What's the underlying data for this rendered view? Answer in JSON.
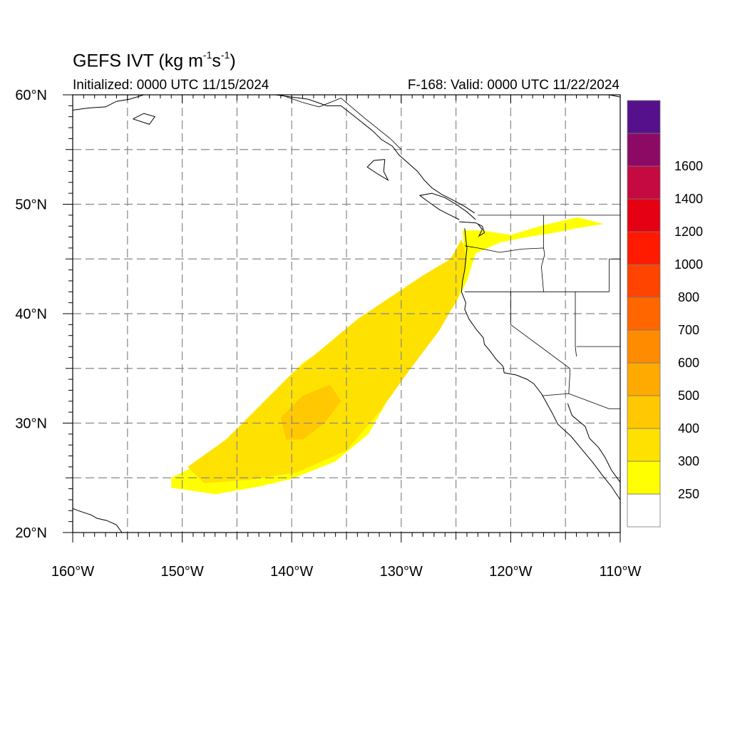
{
  "title": {
    "text": "GEFS IVT (kg m",
    "sup1": "-1",
    "mid": "s",
    "sup2": "-1",
    "close": ")"
  },
  "subtitle_left": "Initialized: 0000 UTC 11/15/2024",
  "subtitle_right": "F-168: Valid: 0000 UTC 11/22/2024",
  "colors": {
    "ivt_250": "#ffff00",
    "ivt_300": "#ffe100",
    "ivt_400": "#ffc800",
    "ivt_500": "#ffaa00",
    "coast": "#000000",
    "grid": "#888888"
  },
  "chart_data": {
    "type": "heatmap",
    "projection": "cylindrical-equidistant",
    "lon_range": [
      -160,
      -110
    ],
    "lat_range": [
      20,
      60
    ],
    "grid_dashed": true,
    "x_ticks": [
      {
        "value": -160,
        "label": "160°W"
      },
      {
        "value": -150,
        "label": "150°W"
      },
      {
        "value": -140,
        "label": "140°W"
      },
      {
        "value": -130,
        "label": "130°W"
      },
      {
        "value": -120,
        "label": "120°W"
      },
      {
        "value": -110,
        "label": "110°W"
      }
    ],
    "y_ticks": [
      {
        "value": 60,
        "label": "60°N"
      },
      {
        "value": 50,
        "label": "50°N"
      },
      {
        "value": 40,
        "label": "40°N"
      },
      {
        "value": 30,
        "label": "30°N"
      },
      {
        "value": 20,
        "label": "20°N"
      }
    ],
    "colorbar": {
      "placement": "right",
      "levels": [
        {
          "label": "250",
          "color": "#ffff00"
        },
        {
          "label": "300",
          "color": "#ffe100"
        },
        {
          "label": "400",
          "color": "#ffc800"
        },
        {
          "label": "500",
          "color": "#ffaa00"
        },
        {
          "label": "600",
          "color": "#ff8c00"
        },
        {
          "label": "700",
          "color": "#ff6600"
        },
        {
          "label": "800",
          "color": "#ff4400"
        },
        {
          "label": "1000",
          "color": "#ff1a00"
        },
        {
          "label": "1200",
          "color": "#e60014"
        },
        {
          "label": "1400",
          "color": "#c40a40"
        },
        {
          "label": "1600",
          "color": "#8c0a64"
        }
      ],
      "below_color": "#ffffff",
      "top_color": "#55118c"
    },
    "ivt_plume_250": [
      [
        -151,
        25.0
      ],
      [
        -147,
        27.0
      ],
      [
        -145,
        29.0
      ],
      [
        -143,
        31.5
      ],
      [
        -141,
        33.5
      ],
      [
        -139,
        35.5
      ],
      [
        -136,
        37.5
      ],
      [
        -133,
        39.5
      ],
      [
        -130,
        41.0
      ],
      [
        -128,
        43.0
      ],
      [
        -126,
        44.5
      ],
      [
        -124.3,
        46.5
      ],
      [
        -124.4,
        47.6
      ],
      [
        -122.6,
        47.6
      ],
      [
        -120,
        47.2
      ],
      [
        -117,
        48.1
      ],
      [
        -113.9,
        48.8
      ],
      [
        -111.5,
        48.2
      ],
      [
        -114,
        47.8
      ],
      [
        -116,
        47.4
      ],
      [
        -118.5,
        47.0
      ],
      [
        -121,
        46.5
      ],
      [
        -123.2,
        45.5
      ],
      [
        -124.0,
        43.0
      ],
      [
        -125.0,
        41.0
      ],
      [
        -126.0,
        39.5
      ],
      [
        -128.5,
        36.0
      ],
      [
        -131.0,
        32.5
      ],
      [
        -133.0,
        29.0
      ],
      [
        -136.0,
        26.5
      ],
      [
        -140.0,
        24.9
      ],
      [
        -143.0,
        24.2
      ],
      [
        -147.0,
        23.5
      ],
      [
        -151.0,
        24.1
      ]
    ],
    "ivt_plume_300": [
      [
        -149.5,
        26.0
      ],
      [
        -146,
        28.5
      ],
      [
        -143,
        31.5
      ],
      [
        -140,
        34.5
      ],
      [
        -137,
        37.0
      ],
      [
        -134,
        39.5
      ],
      [
        -131,
        41.5
      ],
      [
        -128,
        43.5
      ],
      [
        -125.5,
        45.0
      ],
      [
        -124.5,
        46.8
      ],
      [
        -124,
        45.0
      ],
      [
        -124.8,
        41.5
      ],
      [
        -126.5,
        38.5
      ],
      [
        -129.5,
        34.5
      ],
      [
        -132.0,
        31.0
      ],
      [
        -135.0,
        27.5
      ],
      [
        -139.5,
        25.5
      ],
      [
        -144.0,
        24.8
      ],
      [
        -148.0,
        24.5
      ]
    ],
    "ivt_plume_400": [
      [
        -140.5,
        28.5
      ],
      [
        -141.0,
        30.5
      ],
      [
        -139.0,
        32.5
      ],
      [
        -136.5,
        33.5
      ],
      [
        -135.5,
        32.0
      ],
      [
        -137.0,
        30.0
      ],
      [
        -139.0,
        28.5
      ]
    ]
  }
}
